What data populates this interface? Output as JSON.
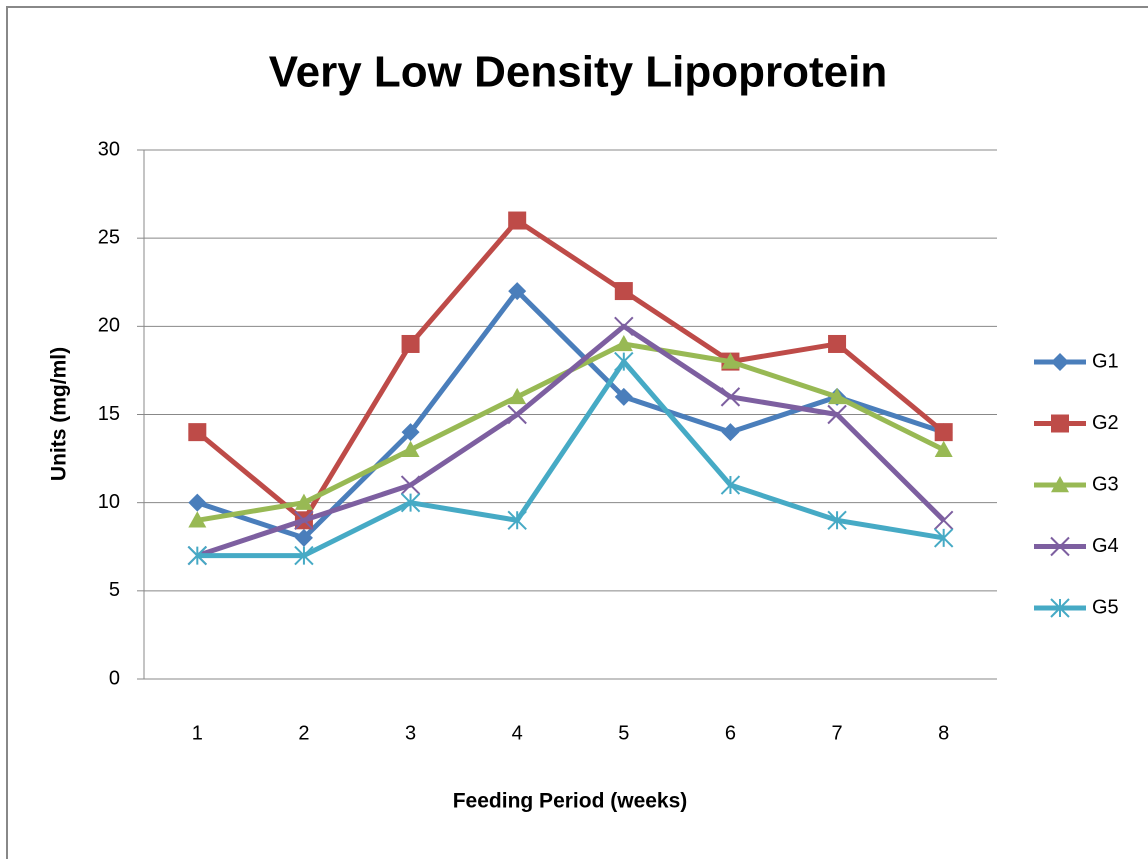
{
  "chart_data": {
    "type": "line",
    "title": "Very Low Density Lipoprotein",
    "xlabel": "Feeding Period (weeks)",
    "ylabel": "Units (mg/ml)",
    "categories": [
      "1",
      "2",
      "3",
      "4",
      "5",
      "6",
      "7",
      "8"
    ],
    "series": [
      {
        "name": "G1",
        "color": "#4a7ebb",
        "marker": "diamond",
        "values": [
          10,
          8,
          14,
          22,
          16,
          14,
          16,
          14
        ]
      },
      {
        "name": "G2",
        "color": "#be4b48",
        "marker": "square",
        "values": [
          14,
          9,
          19,
          26,
          22,
          18,
          19,
          14
        ]
      },
      {
        "name": "G3",
        "color": "#98b954",
        "marker": "triangle",
        "values": [
          9,
          10,
          13,
          16,
          19,
          18,
          16,
          13
        ]
      },
      {
        "name": "G4",
        "color": "#7d5fa0",
        "marker": "x",
        "values": [
          7,
          9,
          11,
          15,
          20,
          16,
          15,
          9
        ]
      },
      {
        "name": "G5",
        "color": "#46aac5",
        "marker": "asterisk",
        "values": [
          7,
          7,
          10,
          9,
          18,
          11,
          9,
          8
        ]
      }
    ],
    "ylim": [
      0,
      30
    ],
    "yticks": [
      0,
      5,
      10,
      15,
      20,
      25,
      30
    ],
    "grid": true,
    "legend": "right"
  }
}
